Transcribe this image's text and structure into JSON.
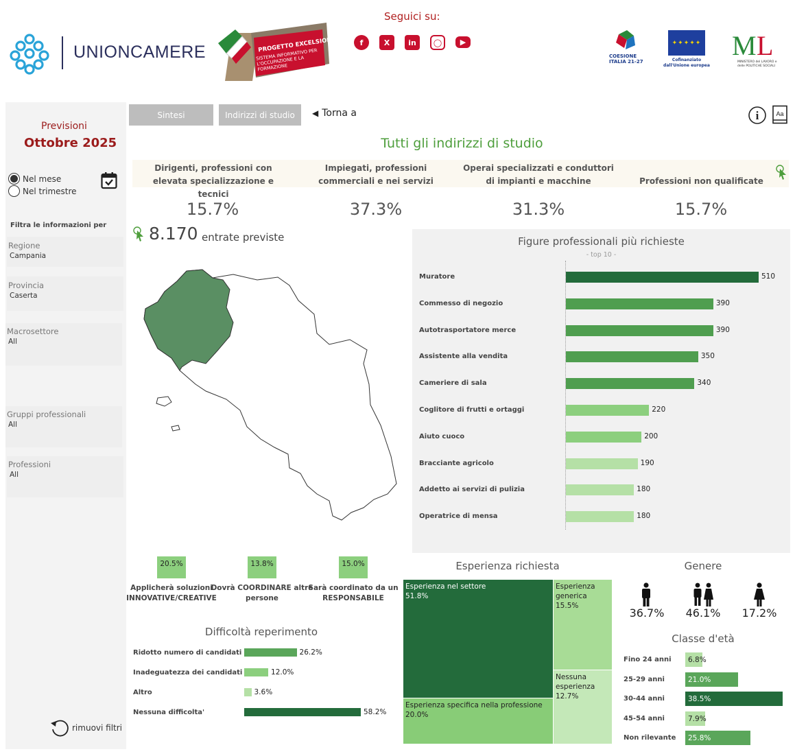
{
  "header": {
    "logo_text": "UNIONCAMERE",
    "excelsior_title": "PROGETTO EXCELSIOR",
    "excelsior_sub": "SISTEMA INFORMATIVO PER L'OCCUPAZIONE E LA FORMAZIONE",
    "seguici": "Seguici su:",
    "social_icons": [
      "facebook-icon",
      "x-icon",
      "linkedin-icon",
      "instagram-icon",
      "youtube-icon"
    ],
    "partner_coesione": "COESIONE ITALIA 21-27",
    "partner_eu": "Cofinanziato dall'Unione europea",
    "partner_ministero": "MINISTERO del LAVORO e delle POLITICHE SOCIALI"
  },
  "sidebar": {
    "previsioni": "Previsioni",
    "period": "Ottobre 2025",
    "radio_month": "Nel mese",
    "radio_quarter": "Nel trimestre",
    "filter_title": "Filtra le informazioni per",
    "filters": [
      {
        "label": "Regione",
        "value": "Campania"
      },
      {
        "label": "Provincia",
        "value": "Caserta"
      },
      {
        "label": "Macrosettore",
        "value": "All"
      },
      {
        "label": "Gruppi professionali",
        "value": "All"
      },
      {
        "label": "Professioni",
        "value": "All"
      }
    ],
    "reset": "rimuovi filtri"
  },
  "tabs": {
    "sintesi": "Sintesi",
    "indirizzi": "Indirizzi di studio",
    "torna": "Torna a"
  },
  "main": {
    "title": "Tutti gli indirizzi di studio",
    "kpis": [
      {
        "label": "Dirigenti, professioni con elevata specializzazione e tecnici",
        "value": "15.7%"
      },
      {
        "label": "Impiegati, professioni commerciali e nei servizi",
        "value": "37.3%"
      },
      {
        "label": "Operai specializzati e conduttori di impianti e macchine",
        "value": "31.3%"
      },
      {
        "label": "Professioni non qualificate",
        "value": "15.7%"
      }
    ],
    "entrate_value": "8.170",
    "entrate_label": "entrate previste"
  },
  "skills": [
    {
      "value": "20.5%",
      "label": "Applicherà soluzioni INNOVATIVE/CREATIVE"
    },
    {
      "value": "13.8%",
      "label": "Dovrà COORDINARE altre persone"
    },
    {
      "value": "15.0%",
      "label": "Sarà coordinato da un RESPONSABILE"
    }
  ],
  "difficolta": {
    "title": "Difficoltà reperimento",
    "items": [
      {
        "label": "Ridotto numero di candidati",
        "value": 26.2,
        "text": "26.2%",
        "color": "#5aa65a"
      },
      {
        "label": "Inadeguatezza dei candidati",
        "value": 12.0,
        "text": "12.0%",
        "color": "#8ccf7e"
      },
      {
        "label": "Altro",
        "value": 3.6,
        "text": "3.6%",
        "color": "#b5e0a6"
      },
      {
        "label": "Nessuna difficolta'",
        "value": 58.2,
        "text": "58.2%",
        "color": "#236b3b"
      }
    ]
  },
  "chart_data": {
    "type": "bar",
    "title": "Figure professionali più richieste",
    "subtitle": "- top 10 -",
    "categories": [
      "Muratore",
      "Commesso di negozio",
      "Autotrasportatore merce",
      "Assistente alla vendita",
      "Cameriere di sala",
      "Coglitore di frutti e ortaggi",
      "Aiuto cuoco",
      "Bracciante agricolo",
      "Addetto ai servizi di pulizia",
      "Operatrice di mensa"
    ],
    "values": [
      510,
      390,
      390,
      350,
      340,
      220,
      200,
      190,
      180,
      180
    ],
    "colors": [
      "#236b3b",
      "#4f9e4f",
      "#4f9e4f",
      "#4f9e4f",
      "#4f9e4f",
      "#8ccf7e",
      "#8ccf7e",
      "#b5e0a6",
      "#b5e0a6",
      "#b5e0a6"
    ]
  },
  "esperienza": {
    "title": "Esperienza richiesta",
    "cells": [
      {
        "label": "Esperienza nel settore",
        "value": "51.8%"
      },
      {
        "label": "Esperienza generica",
        "value": "15.5%"
      },
      {
        "label": "Esperienza specifica nella professione",
        "value": "20.0%"
      },
      {
        "label": "Nessuna esperienza",
        "value": "12.7%"
      }
    ]
  },
  "genere": {
    "title": "Genere",
    "male": "36.7%",
    "both": "46.1%",
    "female": "17.2%"
  },
  "eta": {
    "title": "Classe d'età",
    "items": [
      {
        "label": "Fino 24 anni",
        "value": 6.8,
        "text": "6.8%",
        "color": "#b5e0a6"
      },
      {
        "label": "25-29 anni",
        "value": 21.0,
        "text": "21.0%",
        "color": "#5aa65a"
      },
      {
        "label": "30-44 anni",
        "value": 38.5,
        "text": "38.5%",
        "color": "#236b3b"
      },
      {
        "label": "45-54 anni",
        "value": 7.9,
        "text": "7.9%",
        "color": "#b5e0a6"
      },
      {
        "label": "Non rilevante",
        "value": 25.8,
        "text": "25.8%",
        "color": "#5aa65a"
      }
    ]
  }
}
